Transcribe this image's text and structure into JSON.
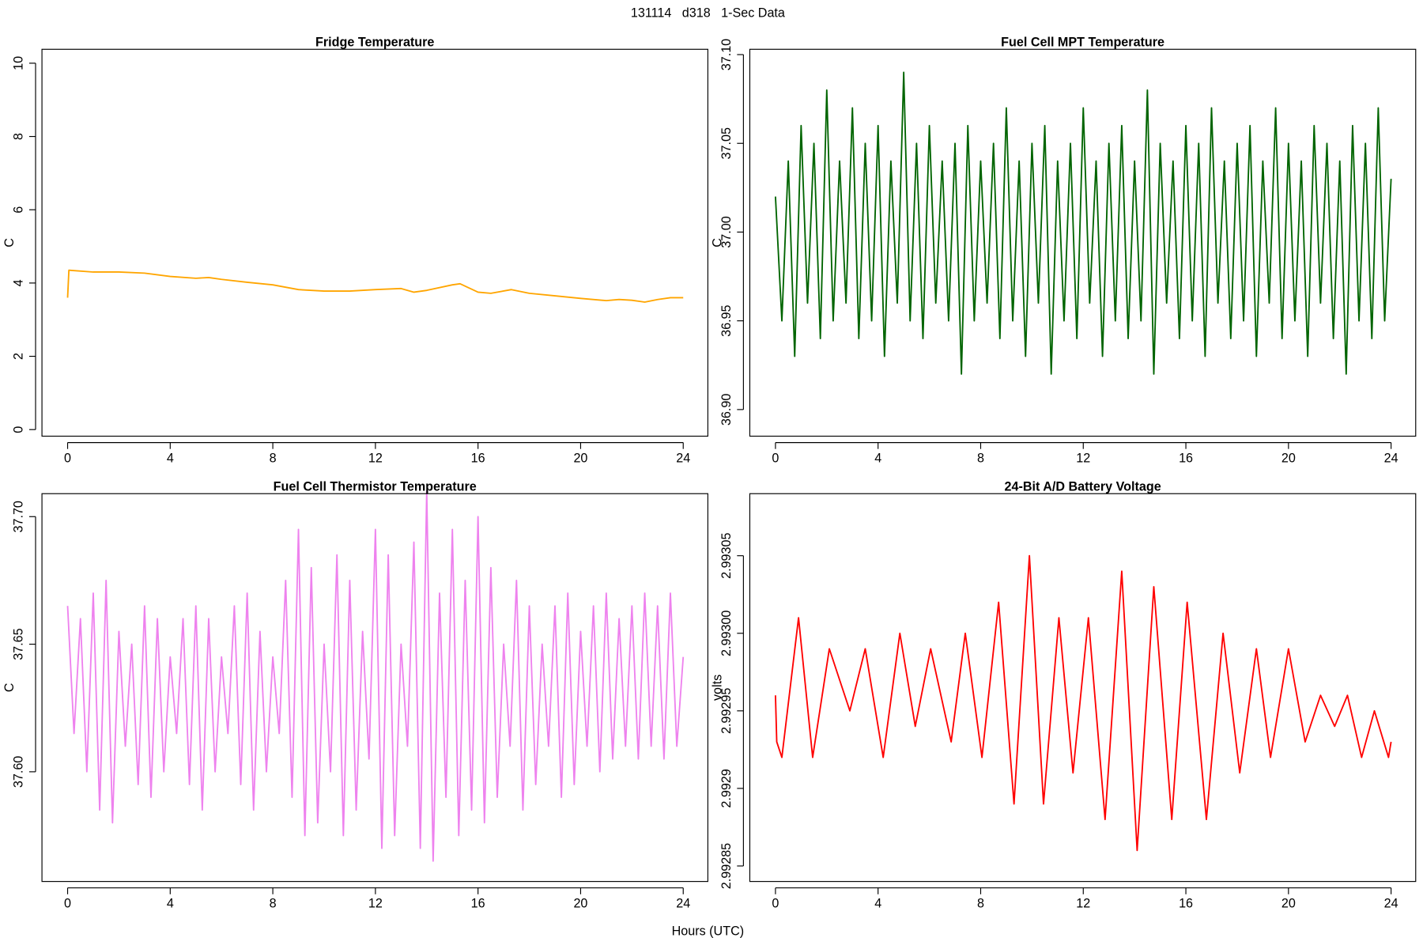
{
  "title": "131114   d318   1-Sec Data",
  "xlabel": "Hours (UTC)",
  "chart_data": [
    {
      "type": "line",
      "title": "Fridge Temperature",
      "ylabel": "C",
      "color": "#FFA500",
      "x": [
        0,
        0.05,
        1,
        2,
        3,
        4,
        5,
        5.5,
        6,
        7,
        8,
        9,
        10,
        11,
        12,
        13,
        13.5,
        14,
        15,
        15.3,
        16,
        16.5,
        17.3,
        18,
        19,
        20,
        21,
        21.5,
        22,
        22.5,
        23,
        23.5,
        24
      ],
      "values": [
        3.6,
        4.35,
        4.3,
        4.3,
        4.27,
        4.18,
        4.13,
        4.15,
        4.1,
        4.02,
        3.95,
        3.82,
        3.78,
        3.78,
        3.82,
        3.85,
        3.75,
        3.8,
        3.95,
        3.98,
        3.75,
        3.72,
        3.82,
        3.72,
        3.65,
        3.58,
        3.52,
        3.55,
        3.53,
        3.48,
        3.55,
        3.6,
        3.6
      ],
      "xlim": [
        -1,
        24.96
      ],
      "xticks": [
        0,
        4,
        8,
        12,
        16,
        20,
        24
      ],
      "ylim": [
        -0.18,
        10.38
      ],
      "yticks": [
        0,
        2,
        4,
        6,
        8,
        10
      ]
    },
    {
      "type": "line",
      "title": "Fuel Cell MPT Temperature",
      "ylabel": "C",
      "color": "#006400",
      "x": [
        0,
        0.25,
        0.5,
        0.75,
        1,
        1.25,
        1.5,
        1.75,
        2,
        2.25,
        2.5,
        2.75,
        3,
        3.25,
        3.5,
        3.75,
        4,
        4.25,
        4.5,
        4.75,
        5,
        5.25,
        5.5,
        5.75,
        6,
        6.25,
        6.5,
        6.75,
        7,
        7.25,
        7.5,
        7.75,
        8,
        8.25,
        8.5,
        8.75,
        9,
        9.25,
        9.5,
        9.75,
        10,
        10.25,
        10.5,
        10.75,
        11,
        11.25,
        11.5,
        11.75,
        12,
        12.25,
        12.5,
        12.75,
        13,
        13.25,
        13.5,
        13.75,
        14,
        14.25,
        14.5,
        14.75,
        15,
        15.25,
        15.5,
        15.75,
        16,
        16.25,
        16.5,
        16.75,
        17,
        17.25,
        17.5,
        17.75,
        18,
        18.25,
        18.5,
        18.75,
        19,
        19.25,
        19.5,
        19.75,
        20,
        20.25,
        20.5,
        20.75,
        21,
        21.25,
        21.5,
        21.75,
        22,
        22.25,
        22.5,
        22.75,
        23,
        23.25,
        23.5,
        23.75,
        24
      ],
      "values": [
        37.02,
        36.95,
        37.04,
        36.93,
        37.06,
        36.96,
        37.05,
        36.94,
        37.08,
        36.95,
        37.04,
        36.96,
        37.07,
        36.94,
        37.05,
        36.95,
        37.06,
        36.93,
        37.04,
        36.96,
        37.09,
        36.95,
        37.05,
        36.94,
        37.06,
        36.96,
        37.04,
        36.95,
        37.05,
        36.92,
        37.06,
        36.95,
        37.04,
        36.96,
        37.05,
        36.94,
        37.07,
        36.95,
        37.04,
        36.93,
        37.05,
        36.96,
        37.06,
        36.92,
        37.04,
        36.95,
        37.05,
        36.94,
        37.07,
        36.96,
        37.04,
        36.93,
        37.05,
        36.95,
        37.06,
        36.94,
        37.04,
        36.95,
        37.08,
        36.92,
        37.05,
        36.96,
        37.04,
        36.94,
        37.06,
        36.95,
        37.05,
        36.93,
        37.07,
        36.96,
        37.04,
        36.94,
        37.05,
        36.95,
        37.06,
        36.93,
        37.04,
        36.96,
        37.07,
        36.94,
        37.05,
        36.95,
        37.04,
        36.93,
        37.06,
        36.96,
        37.05,
        36.94,
        37.04,
        36.92,
        37.06,
        36.95,
        37.05,
        36.94,
        37.07,
        36.95,
        37.03
      ],
      "xlim": [
        -1,
        24.96
      ],
      "xticks": [
        0,
        4,
        8,
        12,
        16,
        20,
        24
      ],
      "ylim": [
        36.885,
        37.103
      ],
      "yticks": [
        {
          "value": 36.9,
          "label": "36.90"
        },
        36.95,
        {
          "value": 37,
          "label": "37.00"
        },
        37.05,
        {
          "value": 37.1,
          "label": "37.10"
        }
      ]
    },
    {
      "type": "line",
      "title": "Fuel Cell Thermistor Temperature",
      "ylabel": "C",
      "color": "#EE82EE",
      "x": [
        0,
        0.25,
        0.5,
        0.75,
        1,
        1.25,
        1.5,
        1.75,
        2,
        2.25,
        2.5,
        2.75,
        3,
        3.25,
        3.5,
        3.75,
        4,
        4.25,
        4.5,
        4.75,
        5,
        5.25,
        5.5,
        5.75,
        6,
        6.25,
        6.5,
        6.75,
        7,
        7.25,
        7.5,
        7.75,
        8,
        8.25,
        8.5,
        8.75,
        9,
        9.25,
        9.5,
        9.75,
        10,
        10.25,
        10.5,
        10.75,
        11,
        11.25,
        11.5,
        11.75,
        12,
        12.25,
        12.5,
        12.75,
        13,
        13.25,
        13.5,
        13.75,
        14,
        14.25,
        14.5,
        14.75,
        15,
        15.25,
        15.5,
        15.75,
        16,
        16.25,
        16.5,
        16.75,
        17,
        17.25,
        17.5,
        17.75,
        18,
        18.25,
        18.5,
        18.75,
        19,
        19.25,
        19.5,
        19.75,
        20,
        20.25,
        20.5,
        20.75,
        21,
        21.25,
        21.5,
        21.75,
        22,
        22.25,
        22.5,
        22.75,
        23,
        23.25,
        23.5,
        23.75,
        24
      ],
      "values": [
        37.665,
        37.615,
        37.66,
        37.6,
        37.67,
        37.585,
        37.675,
        37.58,
        37.655,
        37.61,
        37.65,
        37.595,
        37.665,
        37.59,
        37.66,
        37.6,
        37.645,
        37.615,
        37.66,
        37.595,
        37.665,
        37.585,
        37.66,
        37.6,
        37.645,
        37.615,
        37.665,
        37.595,
        37.67,
        37.585,
        37.655,
        37.6,
        37.645,
        37.615,
        37.675,
        37.59,
        37.695,
        37.575,
        37.68,
        37.58,
        37.65,
        37.6,
        37.685,
        37.575,
        37.675,
        37.585,
        37.655,
        37.605,
        37.695,
        37.57,
        37.685,
        37.575,
        37.65,
        37.61,
        37.69,
        37.57,
        37.71,
        37.565,
        37.67,
        37.59,
        37.695,
        37.575,
        37.675,
        37.585,
        37.7,
        37.58,
        37.68,
        37.59,
        37.65,
        37.61,
        37.675,
        37.585,
        37.665,
        37.595,
        37.65,
        37.61,
        37.665,
        37.59,
        37.67,
        37.595,
        37.655,
        37.61,
        37.665,
        37.6,
        37.67,
        37.605,
        37.66,
        37.61,
        37.665,
        37.605,
        37.67,
        37.61,
        37.665,
        37.605,
        37.67,
        37.61,
        37.645
      ],
      "xlim": [
        -1,
        24.96
      ],
      "xticks": [
        0,
        4,
        8,
        12,
        16,
        20,
        24
      ],
      "ylim": [
        37.557,
        37.709
      ],
      "yticks": [
        {
          "value": 37.6,
          "label": "37.60"
        },
        37.65,
        {
          "value": 37.7,
          "label": "37.70"
        }
      ]
    },
    {
      "type": "line",
      "title": "24-Bit A/D Battery Voltage",
      "ylabel": "volts",
      "color": "#FF0000",
      "x": [
        0,
        0.05,
        0.25,
        0.9,
        1.45,
        2.1,
        2.9,
        3.5,
        4.2,
        4.85,
        5.45,
        6.05,
        6.85,
        7.4,
        8.05,
        8.7,
        9.3,
        9.9,
        10.45,
        11.05,
        11.6,
        12.2,
        12.85,
        13.5,
        14.1,
        14.75,
        15.45,
        16.05,
        16.8,
        17.45,
        18.1,
        18.75,
        19.3,
        20,
        20.65,
        21.25,
        21.8,
        22.3,
        22.85,
        23.35,
        23.9,
        24
      ],
      "values": [
        2.99296,
        2.99293,
        2.99292,
        2.99301,
        2.99292,
        2.99299,
        2.99295,
        2.99299,
        2.99292,
        2.993,
        2.99294,
        2.99299,
        2.99293,
        2.993,
        2.99292,
        2.99302,
        2.99289,
        2.99305,
        2.99289,
        2.99301,
        2.99291,
        2.99301,
        2.99288,
        2.99304,
        2.99286,
        2.99303,
        2.99288,
        2.99302,
        2.99288,
        2.993,
        2.99291,
        2.99299,
        2.99292,
        2.99299,
        2.99293,
        2.99296,
        2.99294,
        2.99296,
        2.99292,
        2.99295,
        2.99292,
        2.99293
      ],
      "xlim": [
        -1,
        24.96
      ],
      "xticks": [
        0,
        4,
        8,
        12,
        16,
        20,
        24
      ],
      "ylim": [
        2.99284,
        2.99309
      ],
      "yticks": [
        2.99285,
        2.9929,
        2.99295,
        {
          "value": 2.993,
          "label": "2.99300"
        },
        2.99305
      ]
    }
  ]
}
